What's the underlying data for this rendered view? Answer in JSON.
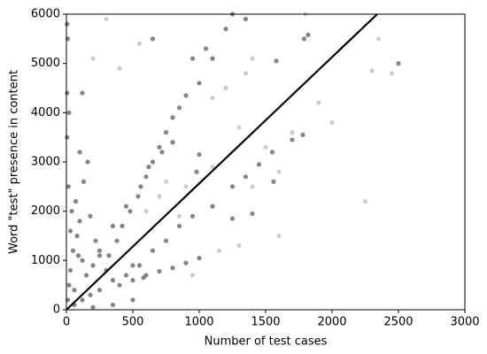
{
  "chart_data": {
    "type": "scatter",
    "xlabel": "Number of test cases",
    "ylabel": "Word \"test\" presence in content",
    "xlim": [
      0,
      3000
    ],
    "ylim": [
      0,
      6000
    ],
    "xticks": [
      0,
      500,
      1000,
      1500,
      2000,
      2500,
      3000
    ],
    "yticks": [
      0,
      1000,
      2000,
      3000,
      4000,
      5000,
      6000
    ],
    "series": [
      {
        "color": "#707070",
        "x": [
          10,
          20,
          30,
          50,
          80,
          100,
          40,
          120,
          150,
          200,
          60,
          90,
          30,
          15,
          5,
          5,
          5,
          10,
          20,
          70,
          130,
          160,
          100,
          180,
          220,
          250,
          300,
          350,
          400,
          250,
          180,
          120,
          60,
          450,
          500,
          500,
          320,
          380,
          420,
          480,
          540,
          600,
          650,
          700,
          750,
          800,
          850,
          900,
          1000,
          1100,
          1200,
          1250,
          1350,
          250,
          350,
          450,
          560,
          620,
          720,
          800,
          950,
          1050,
          650,
          980,
          1000,
          550,
          650,
          750,
          850,
          950,
          1100,
          1250,
          1350,
          1450,
          1550,
          1700,
          1780,
          1560,
          1250,
          1400,
          600,
          700,
          800,
          900,
          1000,
          580,
          120,
          2500,
          1790,
          1820,
          1580,
          500,
          350,
          200
        ],
        "y": [
          200,
          500,
          800,
          1200,
          1500,
          1800,
          2000,
          1000,
          700,
          900,
          400,
          1100,
          1600,
          2500,
          3500,
          4400,
          5800,
          5500,
          4000,
          2200,
          2600,
          3000,
          3200,
          1900,
          1400,
          1100,
          800,
          600,
          500,
          400,
          300,
          200,
          100,
          700,
          900,
          600,
          1100,
          1400,
          1700,
          2000,
          2300,
          2700,
          3000,
          3300,
          3600,
          3900,
          4100,
          4350,
          4600,
          5100,
          5700,
          6000,
          5900,
          1200,
          1700,
          2100,
          2500,
          2900,
          3200,
          3400,
          5100,
          5300,
          5500,
          2800,
          3150,
          900,
          1200,
          1400,
          1700,
          1900,
          2100,
          2500,
          2700,
          2950,
          3200,
          3450,
          3550,
          2600,
          1850,
          1950,
          700,
          780,
          850,
          950,
          1050,
          650,
          4400,
          5000,
          5500,
          5580,
          5050,
          200,
          100,
          50
        ]
      },
      {
        "color": "#c4c4c4",
        "x": [
          600,
          700,
          750,
          1100,
          900,
          1300,
          1500,
          1700,
          1600,
          1400,
          1150,
          1300,
          2350,
          2450,
          2250,
          2000,
          1900,
          1200,
          1400,
          300,
          200,
          400,
          550,
          1100,
          850,
          950,
          1600,
          1800,
          2300,
          1350
        ],
        "y": [
          2000,
          2300,
          2600,
          2900,
          2500,
          3700,
          3300,
          3600,
          2800,
          2500,
          1200,
          1300,
          5500,
          4800,
          2200,
          3800,
          4200,
          4500,
          5100,
          5900,
          5100,
          4900,
          5400,
          4300,
          1900,
          700,
          1500,
          6000,
          4850,
          4800
        ]
      }
    ],
    "line": {
      "color": "#000000",
      "x": [
        0,
        2340
      ],
      "y": [
        0,
        6000
      ]
    }
  }
}
